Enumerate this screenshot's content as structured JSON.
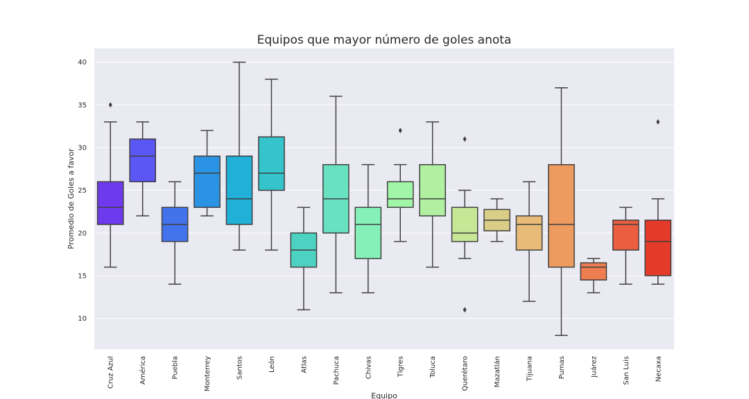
{
  "chart_data": {
    "type": "box",
    "title": "Equipos que mayor número de goles anota",
    "xlabel": "Equipo",
    "ylabel": "Promedio de Goles a favor",
    "ylim": [
      6.4,
      41.6
    ],
    "yticks": [
      10,
      15,
      20,
      25,
      30,
      35,
      40
    ],
    "grid": true,
    "legend": "none",
    "categories": [
      "Cruz Azul",
      "América",
      "Puebla",
      "Monterrey",
      "Santos",
      "León",
      "Atlas",
      "Pachuca",
      "Chivas",
      "Tigres",
      "Toluca",
      "Querétaro",
      "Mazatlán",
      "Tijuana",
      "Pumas",
      "Juárez",
      "San Luis",
      "Necaxa"
    ],
    "boxes": [
      {
        "whisker_low": 16,
        "q1": 21,
        "median": 23,
        "q3": 26,
        "whisker_high": 33,
        "outliers": [
          35
        ]
      },
      {
        "whisker_low": 22,
        "q1": 26,
        "median": 29,
        "q3": 31,
        "whisker_high": 33,
        "outliers": []
      },
      {
        "whisker_low": 14,
        "q1": 19,
        "median": 21,
        "q3": 23,
        "whisker_high": 26,
        "outliers": []
      },
      {
        "whisker_low": 22,
        "q1": 23,
        "median": 27,
        "q3": 29,
        "whisker_high": 32,
        "outliers": []
      },
      {
        "whisker_low": 18,
        "q1": 21,
        "median": 24,
        "q3": 29,
        "whisker_high": 40,
        "outliers": []
      },
      {
        "whisker_low": 18,
        "q1": 25,
        "median": 27,
        "q3": 31.25,
        "whisker_high": 38,
        "outliers": []
      },
      {
        "whisker_low": 11,
        "q1": 16,
        "median": 18,
        "q3": 20,
        "whisker_high": 23,
        "outliers": []
      },
      {
        "whisker_low": 13,
        "q1": 20,
        "median": 24,
        "q3": 28,
        "whisker_high": 36,
        "outliers": []
      },
      {
        "whisker_low": 13,
        "q1": 17,
        "median": 21,
        "q3": 23,
        "whisker_high": 28,
        "outliers": []
      },
      {
        "whisker_low": 19,
        "q1": 23,
        "median": 24,
        "q3": 26,
        "whisker_high": 28,
        "outliers": [
          32
        ]
      },
      {
        "whisker_low": 16,
        "q1": 22,
        "median": 24,
        "q3": 28,
        "whisker_high": 33,
        "outliers": []
      },
      {
        "whisker_low": 17,
        "q1": 19,
        "median": 20,
        "q3": 23,
        "whisker_high": 25,
        "outliers": [
          31,
          11
        ]
      },
      {
        "whisker_low": 19,
        "q1": 20.25,
        "median": 21.5,
        "q3": 22.75,
        "whisker_high": 24,
        "outliers": []
      },
      {
        "whisker_low": 12,
        "q1": 18,
        "median": 21,
        "q3": 22,
        "whisker_high": 26,
        "outliers": []
      },
      {
        "whisker_low": 8,
        "q1": 16,
        "median": 21,
        "q3": 28,
        "whisker_high": 37,
        "outliers": []
      },
      {
        "whisker_low": 13,
        "q1": 14.5,
        "median": 16,
        "q3": 16.5,
        "whisker_high": 17,
        "outliers": []
      },
      {
        "whisker_low": 14,
        "q1": 18,
        "median": 21,
        "q3": 21.5,
        "whisker_high": 23,
        "outliers": []
      },
      {
        "whisker_low": 14,
        "q1": 15,
        "median": 19,
        "q3": 21.5,
        "whisker_high": 24,
        "outliers": [
          33
        ]
      }
    ],
    "colors": [
      "#6f39ee",
      "#5b57f4",
      "#4373ec",
      "#2a93e3",
      "#20b0d8",
      "#35c4cc",
      "#4dd2c2",
      "#68e0c2",
      "#85f0b8",
      "#a0f5a8",
      "#b0f0a0",
      "#c7e696",
      "#dacd88",
      "#e8bc78",
      "#ee9b60",
      "#ee7e50",
      "#eb5e40",
      "#e43a2a"
    ]
  }
}
